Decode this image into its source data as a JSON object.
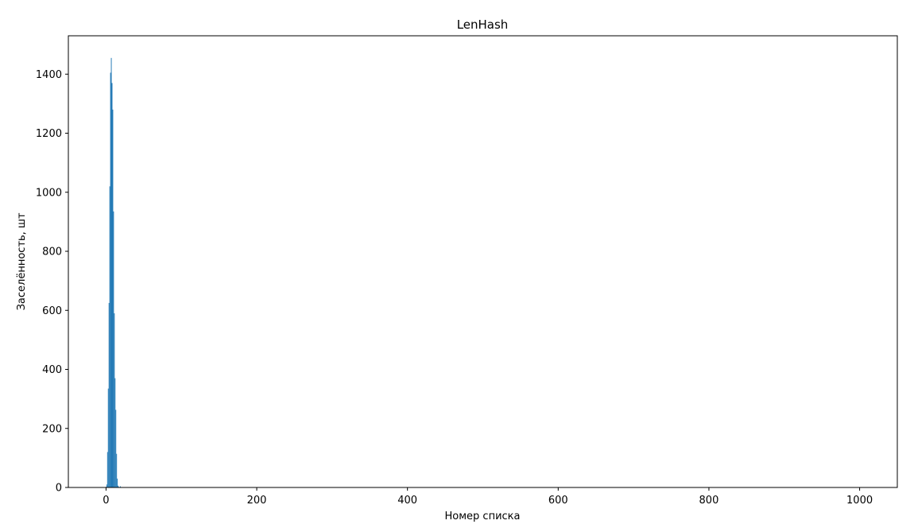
{
  "chart_data": {
    "type": "bar",
    "title": "LenHash",
    "xlabel": "Номер списка",
    "ylabel": "Заселённость, шт",
    "xlim": [
      -50,
      1050
    ],
    "ylim": [
      0,
      1530
    ],
    "xticks": [
      0,
      200,
      400,
      600,
      800,
      1000
    ],
    "yticks": [
      0,
      200,
      400,
      600,
      800,
      1000,
      1200,
      1400
    ],
    "grid": false,
    "bar_color": "#1f77b4",
    "series": [
      {
        "x": [
          0,
          1,
          2,
          3,
          4,
          5,
          6,
          7,
          8,
          9,
          10,
          11,
          12,
          13,
          14,
          15,
          16,
          17,
          18,
          19,
          20
        ],
        "values": [
          2,
          10,
          120,
          335,
          625,
          1020,
          1405,
          1455,
          1370,
          1280,
          935,
          590,
          370,
          263,
          114,
          30,
          6,
          2,
          1,
          4,
          1
        ]
      }
    ]
  }
}
